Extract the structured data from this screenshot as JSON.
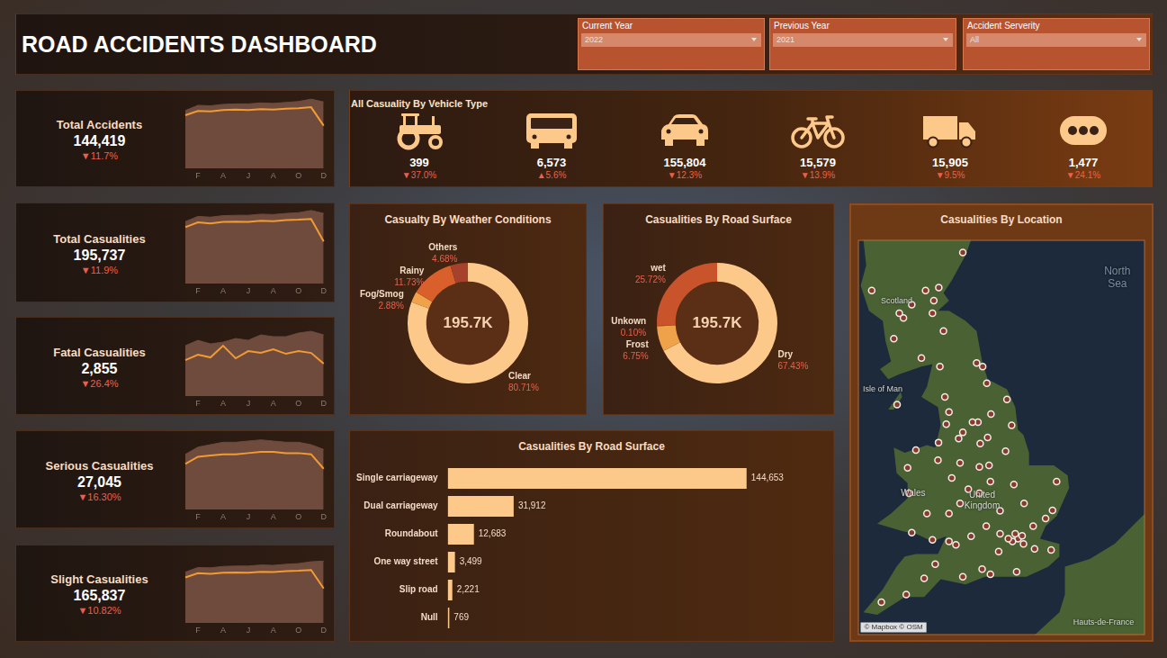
{
  "title": "ROAD ACCIDENTS DASHBOARD",
  "filters": [
    {
      "label": "Current Year",
      "value": "2022"
    },
    {
      "label": "Previous Year",
      "value": "2021"
    },
    {
      "label": "Accident Serverity",
      "value": "All"
    }
  ],
  "vehicle_panel": {
    "title": "All Casuality By Vehicle Type",
    "items": [
      {
        "value": "399",
        "change": "▼37.0%"
      },
      {
        "value": "6,573",
        "change": "▲5.6%"
      },
      {
        "value": "155,804",
        "change": "▼12.3%"
      },
      {
        "value": "15,579",
        "change": "▼13.9%"
      },
      {
        "value": "15,905",
        "change": "▼9.5%"
      },
      {
        "value": "1,477",
        "change": "▼24.1%"
      }
    ]
  },
  "chart_data": [
    {
      "type": "line",
      "title": "Total Accidents",
      "kpi": "144,419",
      "change": "▼11.7%",
      "categories": [
        null,
        "F",
        null,
        "A",
        null,
        "J",
        null,
        "A",
        null,
        "O",
        null,
        "D"
      ],
      "series": [
        {
          "type": "area",
          "color": "#6e4b3c",
          "values": [
            12200,
            13300,
            13200,
            13500,
            13600,
            13600,
            13800,
            13700,
            13900,
            14100,
            14600,
            14000
          ]
        },
        {
          "type": "line",
          "color": "#f39a33",
          "values": [
            11200,
            12100,
            12000,
            12300,
            12400,
            12300,
            12500,
            12400,
            12600,
            12700,
            12900,
            9019
          ]
        }
      ],
      "tick_labels": "x",
      "grid": false
    },
    {
      "type": "line",
      "title": "Total Casualities",
      "kpi": "195,737",
      "change": "▼11.9%",
      "categories": [
        null,
        "F",
        null,
        "A",
        null,
        "J",
        null,
        "A",
        null,
        "O",
        null,
        "D"
      ],
      "series": [
        {
          "type": "area",
          "color": "#6e4b3c",
          "values": [
            16800,
            18200,
            18000,
            18400,
            18500,
            18500,
            18800,
            18700,
            19000,
            19200,
            19800,
            19000
          ]
        },
        {
          "type": "line",
          "color": "#f39a33",
          "values": [
            15300,
            16600,
            16300,
            16700,
            16800,
            16700,
            17000,
            16900,
            17200,
            17300,
            17500,
            11400
          ]
        }
      ],
      "tick_labels": "x",
      "grid": false
    },
    {
      "type": "line",
      "title": "Fatal Casualities",
      "kpi": "2,855",
      "change": "▼26.4%",
      "categories": [
        null,
        "F",
        null,
        "A",
        null,
        "J",
        null,
        "A",
        null,
        "O",
        null,
        "D"
      ],
      "series": [
        {
          "type": "area",
          "color": "#6e4b3c",
          "values": [
            280,
            310,
            290,
            300,
            320,
            310,
            340,
            330,
            330,
            350,
            360,
            340
          ]
        },
        {
          "type": "line",
          "color": "#f39a33",
          "values": [
            200,
            230,
            215,
            280,
            210,
            250,
            240,
            260,
            235,
            250,
            240,
            180
          ]
        }
      ],
      "tick_labels": "x",
      "grid": false
    },
    {
      "type": "line",
      "title": "Serious Casualities",
      "kpi": "27,045",
      "change": "▼16.30%",
      "categories": [
        null,
        "F",
        null,
        "A",
        null,
        "J",
        null,
        "A",
        null,
        "O",
        null,
        "D"
      ],
      "series": [
        {
          "type": "area",
          "color": "#6e4b3c",
          "values": [
            2300,
            2600,
            2700,
            2800,
            2800,
            2850,
            2900,
            2850,
            2800,
            2800,
            2700,
            2500
          ]
        },
        {
          "type": "line",
          "color": "#f39a33",
          "values": [
            1900,
            2200,
            2250,
            2300,
            2300,
            2350,
            2400,
            2400,
            2350,
            2350,
            2300,
            1700
          ]
        }
      ],
      "tick_labels": "x",
      "grid": false
    },
    {
      "type": "line",
      "title": "Slight Casualities",
      "kpi": "165,837",
      "change": "▼10.82%",
      "categories": [
        null,
        "F",
        null,
        "A",
        null,
        "J",
        null,
        "A",
        null,
        "O",
        null,
        "D"
      ],
      "series": [
        {
          "type": "area",
          "color": "#6e4b3c",
          "values": [
            14300,
            15600,
            15500,
            15900,
            16000,
            16000,
            16300,
            16200,
            16500,
            16700,
            17200,
            17400
          ]
        },
        {
          "type": "line",
          "color": "#f39a33",
          "values": [
            12800,
            14000,
            13800,
            14100,
            14200,
            14100,
            14400,
            14300,
            14600,
            14700,
            14900,
            9700
          ]
        }
      ],
      "tick_labels": "x",
      "grid": false
    },
    {
      "type": "doughnut",
      "title": "Casualty By Weather Conditions",
      "annotation": "195.7K",
      "categories": [
        "Clear",
        "Fog/Smog",
        "Rainy",
        "Others"
      ],
      "values": [
        80.71,
        2.88,
        11.73,
        4.68
      ],
      "value_labels": [
        "80.71%",
        "2.88%",
        "11.73%",
        "4.68%"
      ],
      "colors": [
        "#fdc98b",
        "#f0a24a",
        "#d95f2b",
        "#a6412b"
      ],
      "data_labels": true
    },
    {
      "type": "doughnut",
      "title": "Casualities By Road Surface",
      "annotation": "195.7K",
      "categories": [
        "Dry",
        "Frost",
        "Unkown",
        "wet"
      ],
      "values": [
        67.43,
        6.75,
        0.1,
        25.72
      ],
      "value_labels": [
        "67.43%",
        "6.75%",
        "0.10%",
        "25.72%"
      ],
      "colors": [
        "#fdc98b",
        "#f0a24a",
        "#e07b35",
        "#c9542b"
      ],
      "data_labels": true
    },
    {
      "type": "bar",
      "orientation": "horizontal",
      "title": "Casualities By Road Surface",
      "categories": [
        "Single carriageway",
        "Dual carriageway",
        "Roundabout",
        "One way street",
        "Slip road",
        "Null"
      ],
      "values": [
        144653,
        31912,
        12683,
        3499,
        2221,
        769
      ],
      "value_labels": [
        "144,653",
        "31,912",
        "12,683",
        "3,499",
        "2,221",
        "769"
      ],
      "color": "#fdc98b",
      "data_labels": true,
      "tick_labels": "y",
      "grid": false
    },
    {
      "type": "scatter",
      "title": "Casualities By Location",
      "x": [
        -0.1,
        -0.3,
        0.05,
        -0.2,
        0.1,
        -0.45,
        0.5,
        1.1,
        -0.15,
        -0.8,
        -1.1,
        -1.4,
        -0.75,
        0.45,
        0.9,
        -2.6,
        -1.8,
        -3.5,
        -4.15,
        -5.05,
        -2.1,
        -3.1,
        -2.35,
        -3.2,
        -3.95,
        -4.05,
        -3.0,
        -3.8,
        -4.1,
        -3.4,
        -1.9,
        -1.5,
        -1.15,
        -1.5,
        -1.1,
        -2.2,
        -2.5,
        -0.55,
        -0.25,
        -2.2,
        -0.75,
        -1.25,
        0.12,
        1.3,
        1.15,
        -2.6,
        -2.25,
        -2.98,
        -1.55,
        -1.47,
        -1.75,
        -0.33,
        -1.08,
        -2.7,
        -2.6,
        -1.6,
        -1.38,
        -1.23,
        -2.93,
        -2.75,
        -1.2,
        -2.1,
        -0.5,
        -3.2,
        -4.25,
        -2.97,
        -3.95,
        -4.6,
        -3.6,
        -2.8,
        -3.45,
        -2.1,
        -5.4,
        -4.4,
        -3.15,
        -4.48
      ],
      "values": [
        51.5,
        51.45,
        51.56,
        51.6,
        51.4,
        51.5,
        51.3,
        51.28,
        50.85,
        51.25,
        50.8,
        50.9,
        51.6,
        51.75,
        51.9,
        51.45,
        51.55,
        50.72,
        50.4,
        50.25,
        50.75,
        51.0,
        51.38,
        51.48,
        51.62,
        52.4,
        53.05,
        53.25,
        52.9,
        52.0,
        52.48,
        52.4,
        52.95,
        52.92,
        52.63,
        53.0,
        52.7,
        53.23,
        52.57,
        52.2,
        52.05,
        51.75,
        52.2,
        52.63,
        52.06,
        52.0,
        53.48,
        53.4,
        53.8,
        53.38,
        53.8,
        53.74,
        53.96,
        53.76,
        54.0,
        54.97,
        54.9,
        54.57,
        54.9,
        54.3,
        53.5,
        53.6,
        54.25,
        55.95,
        55.86,
        56.46,
        56.12,
        55.45,
        55.07,
        55.6,
        56.4,
        57.15,
        56.4,
        55.95,
        56.2,
        54.15
      ],
      "xlim": [
        -5.9,
        4.5
      ],
      "ylim": [
        49.6,
        57.4
      ],
      "color": "#f4ece8",
      "tick_labels": false,
      "grid": false,
      "annotations": [
        "North Sea",
        "Scotland",
        "Isle of Man",
        "Wales",
        "United Kingdom",
        "Hauts-de-France"
      ],
      "attribution": "© Mapbox © OSM"
    }
  ]
}
